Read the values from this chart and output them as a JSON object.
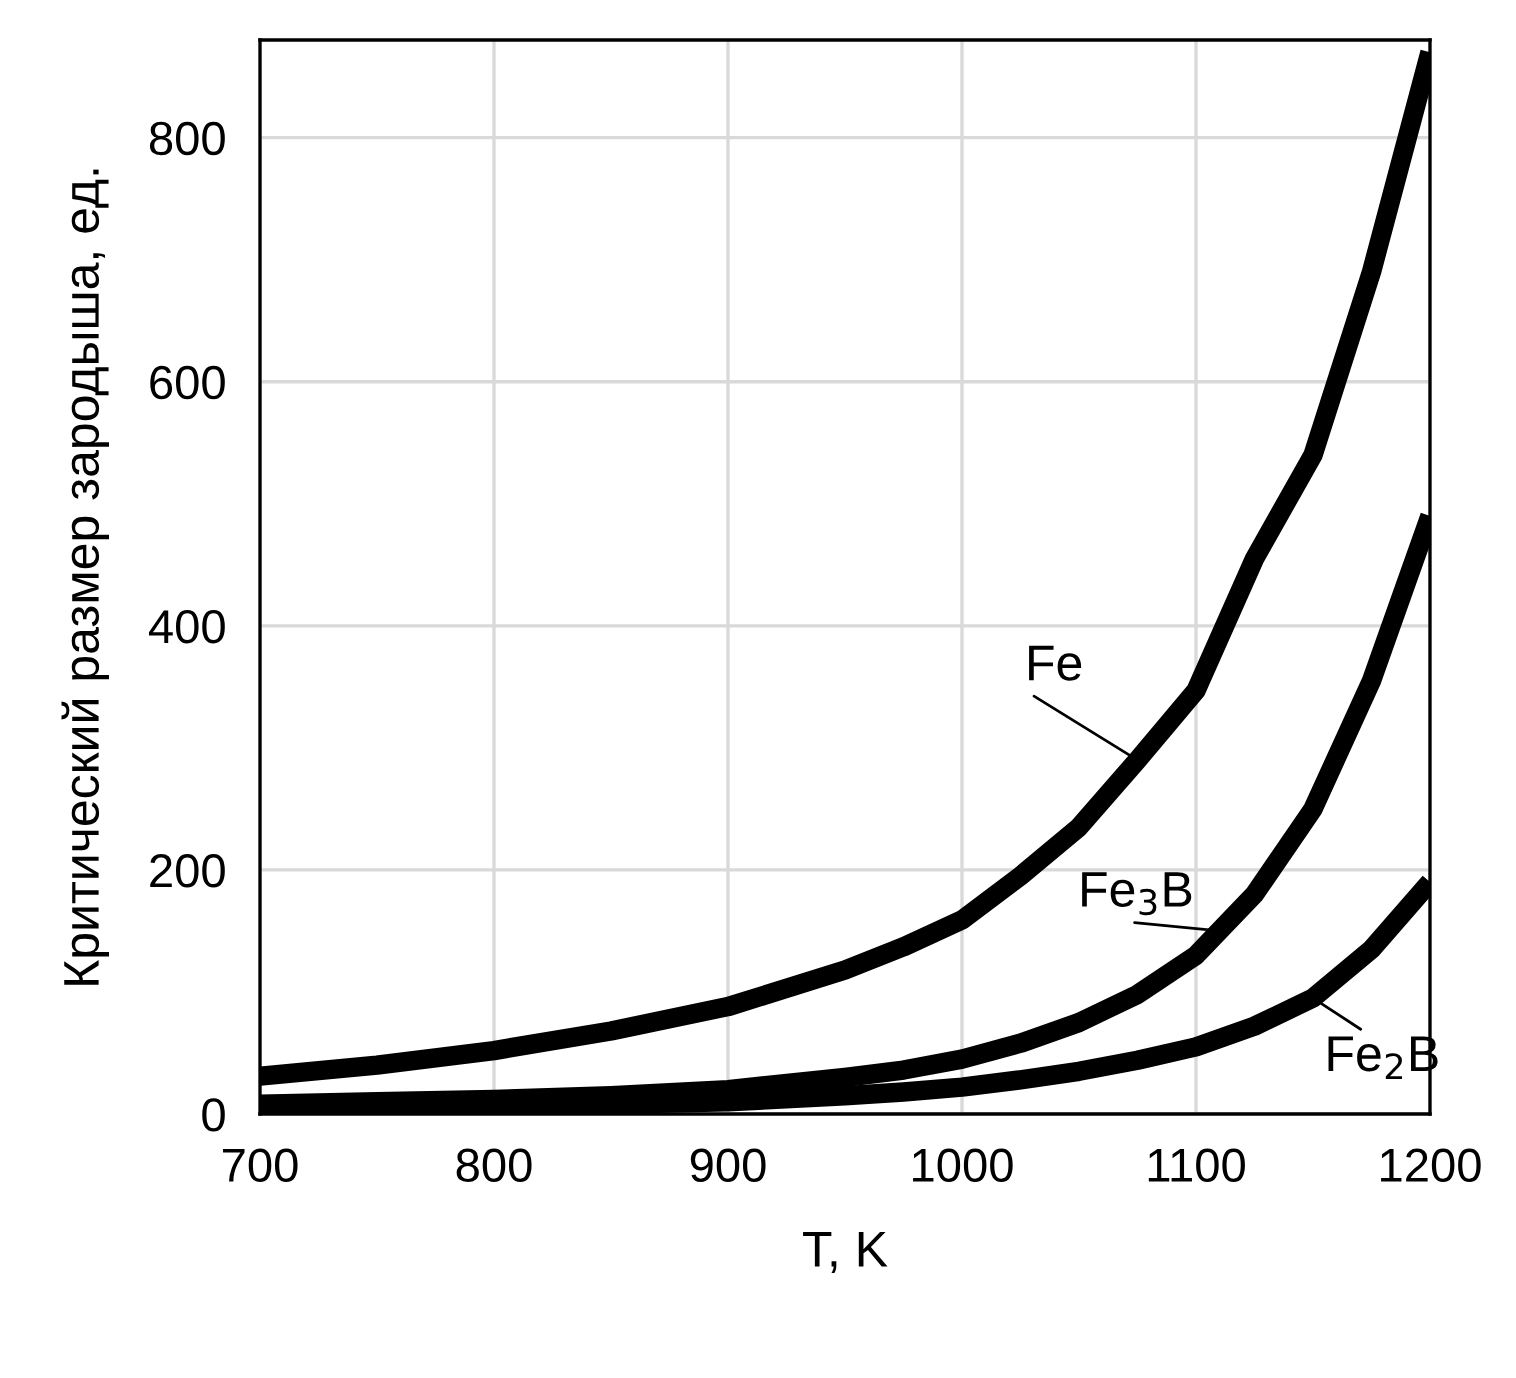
{
  "chart_data": {
    "type": "line",
    "xlabel": "T, K",
    "ylabel": "Критический размер зародыша, ед.",
    "xlim": [
      700,
      1200
    ],
    "xticks": [
      700,
      800,
      900,
      1000,
      1100,
      1200
    ],
    "ylim": [
      0,
      880
    ],
    "yticks": [
      0,
      200,
      400,
      600,
      800
    ],
    "grid": true,
    "legend": false,
    "marker": "none",
    "line_style": "solid",
    "series": [
      {
        "color": "#000000",
        "x": [
          700,
          750,
          800,
          850,
          900,
          950,
          975,
          1000,
          1025,
          1050,
          1075,
          1100,
          1125,
          1150,
          1175,
          1200
        ],
        "values": [
          31,
          40,
          52,
          68,
          88,
          118,
          137,
          159,
          195,
          235,
          290,
          347,
          455,
          540,
          690,
          870
        ]
      },
      {
        "color": "#000000",
        "x": [
          700,
          750,
          800,
          850,
          900,
          950,
          975,
          1000,
          1025,
          1050,
          1075,
          1100,
          1125,
          1150,
          1175,
          1200
        ],
        "values": [
          8,
          10,
          12,
          15,
          20,
          30,
          36,
          45,
          58,
          75,
          98,
          130,
          180,
          250,
          355,
          490
        ]
      },
      {
        "color": "#000000",
        "x": [
          700,
          750,
          800,
          850,
          900,
          950,
          975,
          1000,
          1025,
          1050,
          1075,
          1100,
          1125,
          1150,
          1175,
          1200
        ],
        "values": [
          3,
          4,
          6,
          8,
          10,
          15,
          18,
          22,
          28,
          35,
          44,
          55,
          72,
          95,
          135,
          190
        ]
      }
    ],
    "annotations": [
      {
        "text": "Fe",
        "x": 1075,
        "y": 290
      },
      {
        "text": "Fe$_{3}$B",
        "x": 1110,
        "y": 150
      },
      {
        "text": "Fe$_{2}$B",
        "x": 1150,
        "y": 95
      }
    ]
  }
}
